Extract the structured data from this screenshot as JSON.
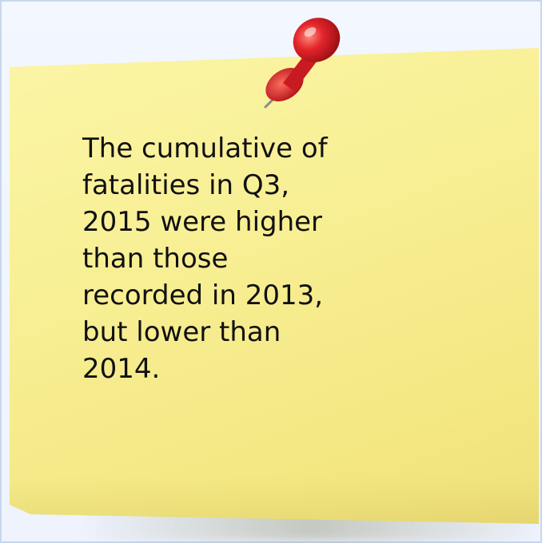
{
  "note": {
    "text": "The cumulative of\nfatalities in Q3,\n2015 were higher\nthan those\nrecorded in 2013,\nbut lower than\n2014."
  },
  "colors": {
    "note_yellow": "#f8ef94",
    "pin_red": "#e4252c",
    "frame_border": "#c9d6ee"
  },
  "icons": {
    "pin": "push-pin-icon"
  }
}
